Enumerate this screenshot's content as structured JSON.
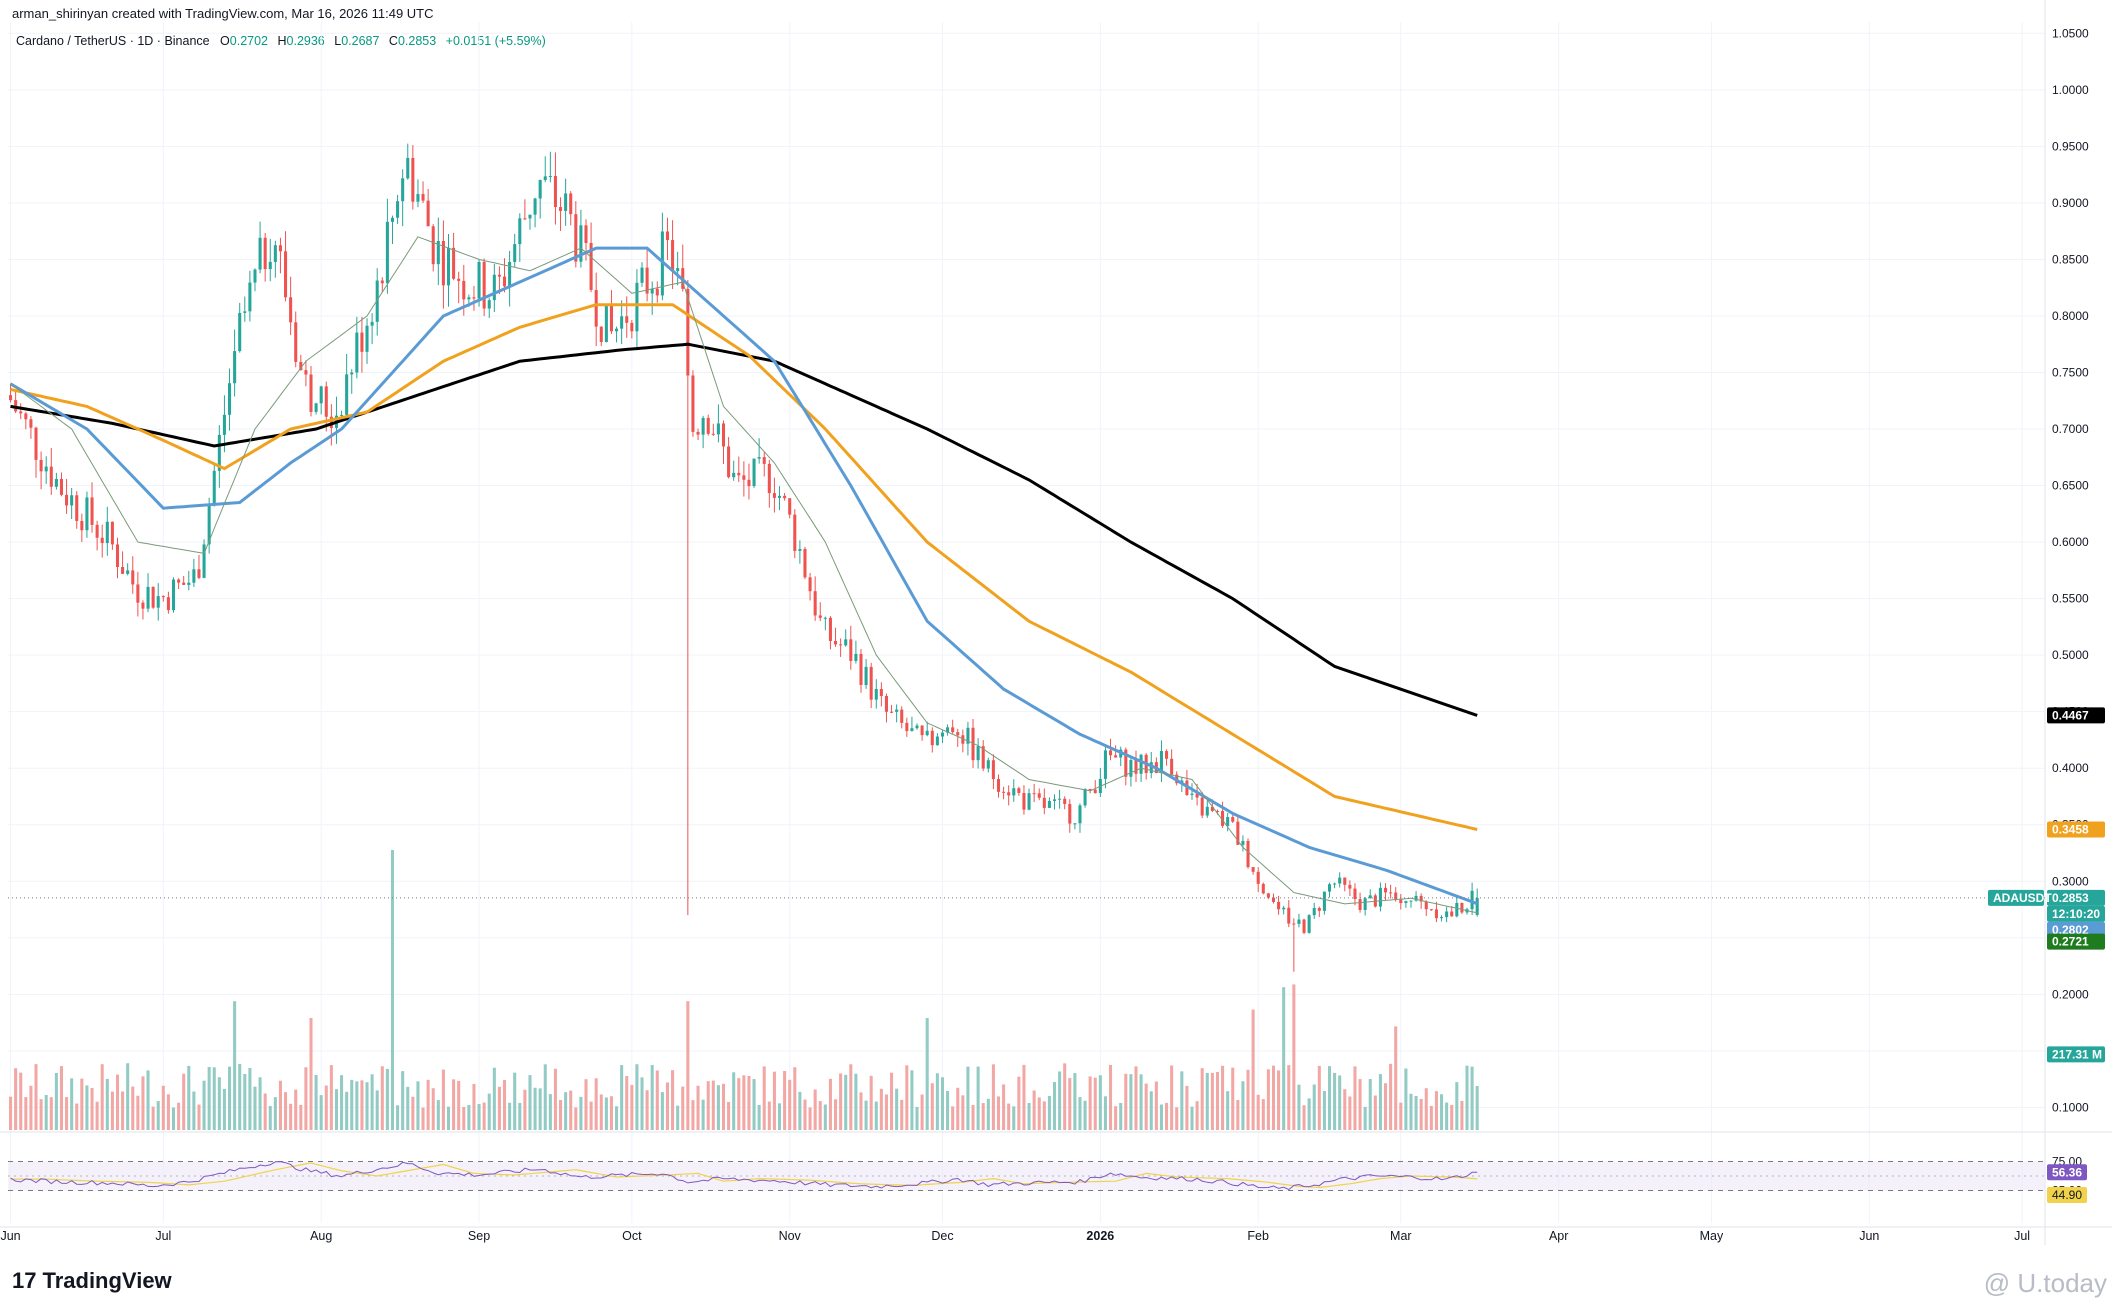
{
  "header": {
    "created_by": "arman_shirinyan created with TradingView.com, Mar 16, 2026 11:49 UTC"
  },
  "symbol": {
    "name": "Cardano / TetherUS · 1D · Binance",
    "open_label": "O",
    "open": "0.2702",
    "high_label": "H",
    "high": "0.2936",
    "low_label": "L",
    "low": "0.2687",
    "close_label": "C",
    "close": "0.2853",
    "change": "+0.0151 (+5.59%)"
  },
  "brand": {
    "name": "TradingView",
    "logo_text": "17"
  },
  "watermark": {
    "text": "@ U.today"
  },
  "colors": {
    "up": "#26a69a",
    "down": "#ef5350",
    "sma200": "#000000",
    "sma100": "#f0a11e",
    "sma50": "#5b9bd5",
    "sma20": "#7a9a7a",
    "vol_up": "#92cbc4",
    "vol_down": "#f2a7a5",
    "rsi": "#7e57c2",
    "rsi_ma": "#f0d34a"
  },
  "chart_data": {
    "type": "candlestick",
    "title": "Cardano / TetherUS · 1D · Binance",
    "ylim": [
      0.08,
      1.06
    ],
    "y_ticks": [
      1.05,
      1.0,
      0.95,
      0.9,
      0.85,
      0.8,
      0.75,
      0.7,
      0.65,
      0.6,
      0.55,
      0.5,
      0.45,
      0.4,
      0.35,
      0.3,
      0.25,
      0.2,
      0.15,
      0.1
    ],
    "x_labels": [
      "Jun",
      "Jul",
      "Aug",
      "Sep",
      "Oct",
      "Nov",
      "Dec",
      "2026",
      "Feb",
      "Mar",
      "Apr",
      "May",
      "Jun",
      "Jul"
    ],
    "x_label_days": [
      0,
      30,
      61,
      92,
      122,
      153,
      183,
      214,
      245,
      273,
      304,
      334,
      365,
      395
    ],
    "last_day": 288,
    "total_days": 400,
    "price_path": [
      [
        0,
        0.73
      ],
      [
        10,
        0.65
      ],
      [
        20,
        0.6
      ],
      [
        25,
        0.56
      ],
      [
        30,
        0.55
      ],
      [
        37,
        0.57
      ],
      [
        45,
        0.78
      ],
      [
        52,
        0.88
      ],
      [
        58,
        0.74
      ],
      [
        64,
        0.71
      ],
      [
        72,
        0.82
      ],
      [
        78,
        0.94
      ],
      [
        84,
        0.86
      ],
      [
        90,
        0.83
      ],
      [
        96,
        0.82
      ],
      [
        104,
        0.92
      ],
      [
        110,
        0.89
      ],
      [
        118,
        0.78
      ],
      [
        124,
        0.82
      ],
      [
        130,
        0.86
      ],
      [
        133,
        0.8
      ],
      [
        134,
        0.7
      ],
      [
        137,
        0.72
      ],
      [
        143,
        0.65
      ],
      [
        150,
        0.66
      ],
      [
        155,
        0.6
      ],
      [
        160,
        0.52
      ],
      [
        166,
        0.5
      ],
      [
        172,
        0.45
      ],
      [
        180,
        0.42
      ],
      [
        186,
        0.44
      ],
      [
        192,
        0.4
      ],
      [
        200,
        0.37
      ],
      [
        210,
        0.36
      ],
      [
        216,
        0.41
      ],
      [
        222,
        0.4
      ],
      [
        228,
        0.41
      ],
      [
        232,
        0.37
      ],
      [
        240,
        0.35
      ],
      [
        246,
        0.3
      ],
      [
        250,
        0.27
      ],
      [
        255,
        0.26
      ],
      [
        260,
        0.3
      ],
      [
        266,
        0.28
      ],
      [
        272,
        0.29
      ],
      [
        278,
        0.28
      ],
      [
        283,
        0.27
      ],
      [
        288,
        0.2853
      ]
    ],
    "moving_averages": [
      {
        "name": "SMA 200",
        "color": "#000000",
        "last": 0.4467,
        "points": [
          [
            0,
            0.72
          ],
          [
            20,
            0.705
          ],
          [
            40,
            0.685
          ],
          [
            60,
            0.7
          ],
          [
            80,
            0.73
          ],
          [
            100,
            0.76
          ],
          [
            120,
            0.77
          ],
          [
            133,
            0.775
          ],
          [
            150,
            0.76
          ],
          [
            160,
            0.74
          ],
          [
            180,
            0.7
          ],
          [
            200,
            0.655
          ],
          [
            220,
            0.6
          ],
          [
            240,
            0.55
          ],
          [
            260,
            0.49
          ],
          [
            288,
            0.4467
          ]
        ]
      },
      {
        "name": "SMA 100",
        "color": "#f0a11e",
        "last": 0.3458,
        "points": [
          [
            0,
            0.735
          ],
          [
            15,
            0.72
          ],
          [
            30,
            0.69
          ],
          [
            42,
            0.665
          ],
          [
            55,
            0.7
          ],
          [
            70,
            0.715
          ],
          [
            85,
            0.76
          ],
          [
            100,
            0.79
          ],
          [
            115,
            0.81
          ],
          [
            130,
            0.81
          ],
          [
            145,
            0.765
          ],
          [
            160,
            0.7
          ],
          [
            180,
            0.6
          ],
          [
            200,
            0.53
          ],
          [
            220,
            0.485
          ],
          [
            240,
            0.43
          ],
          [
            260,
            0.375
          ],
          [
            288,
            0.3458
          ]
        ]
      },
      {
        "name": "SMA 50",
        "color": "#5b9bd5",
        "last": 0.2802,
        "points": [
          [
            0,
            0.74
          ],
          [
            15,
            0.7
          ],
          [
            30,
            0.63
          ],
          [
            45,
            0.635
          ],
          [
            55,
            0.67
          ],
          [
            65,
            0.7
          ],
          [
            75,
            0.75
          ],
          [
            85,
            0.8
          ],
          [
            100,
            0.83
          ],
          [
            115,
            0.86
          ],
          [
            125,
            0.86
          ],
          [
            135,
            0.82
          ],
          [
            150,
            0.76
          ],
          [
            165,
            0.65
          ],
          [
            180,
            0.53
          ],
          [
            195,
            0.47
          ],
          [
            210,
            0.43
          ],
          [
            225,
            0.4
          ],
          [
            240,
            0.36
          ],
          [
            255,
            0.33
          ],
          [
            270,
            0.31
          ],
          [
            288,
            0.2802
          ]
        ]
      },
      {
        "name": "SMA 20",
        "color": "#7a9a7a",
        "last": 0.2721,
        "points": [
          [
            0,
            0.74
          ],
          [
            12,
            0.7
          ],
          [
            25,
            0.6
          ],
          [
            38,
            0.59
          ],
          [
            48,
            0.7
          ],
          [
            58,
            0.76
          ],
          [
            70,
            0.8
          ],
          [
            80,
            0.87
          ],
          [
            92,
            0.85
          ],
          [
            102,
            0.84
          ],
          [
            112,
            0.86
          ],
          [
            122,
            0.82
          ],
          [
            132,
            0.83
          ],
          [
            140,
            0.72
          ],
          [
            150,
            0.67
          ],
          [
            160,
            0.6
          ],
          [
            170,
            0.5
          ],
          [
            180,
            0.44
          ],
          [
            190,
            0.42
          ],
          [
            200,
            0.39
          ],
          [
            212,
            0.38
          ],
          [
            222,
            0.4
          ],
          [
            232,
            0.39
          ],
          [
            242,
            0.33
          ],
          [
            252,
            0.29
          ],
          [
            262,
            0.28
          ],
          [
            275,
            0.285
          ],
          [
            288,
            0.2721
          ]
        ]
      }
    ],
    "price_tags": [
      {
        "label": "0.4467",
        "value": 0.4467,
        "color": "#000000"
      },
      {
        "label": "0.3458",
        "value": 0.3458,
        "color": "#f0a11e"
      },
      {
        "label": "0.2853",
        "value": 0.2853,
        "color": "#26a69a"
      },
      {
        "label": "12:10:20",
        "value": 0.2853,
        "color": "#26a69a",
        "countdown": true
      },
      {
        "label": "0.2802",
        "value": 0.2802,
        "color": "#5b9bd5"
      },
      {
        "label": "0.2721",
        "value": 0.2721,
        "color": "#1e7b1e"
      }
    ],
    "symbol_tag": "ADAUSDT",
    "volume": {
      "last_label": "217.31 M",
      "spikes": [
        [
          75,
          1.0
        ],
        [
          133,
          0.46
        ],
        [
          250,
          0.51
        ],
        [
          252,
          0.52
        ],
        [
          244,
          0.43
        ],
        [
          44,
          0.46
        ],
        [
          59,
          0.4
        ],
        [
          180,
          0.4
        ],
        [
          272,
          0.37
        ]
      ]
    },
    "rsi": {
      "upper": 75.0,
      "lower": 25.0,
      "upper_label": "75.00",
      "lower_label": "25.00",
      "value": 56.36,
      "value_label": "56.36",
      "ma": 44.9,
      "ma_label": "44.90",
      "path": [
        [
          0,
          44
        ],
        [
          10,
          40
        ],
        [
          20,
          38
        ],
        [
          28,
          33
        ],
        [
          35,
          40
        ],
        [
          45,
          62
        ],
        [
          52,
          75
        ],
        [
          58,
          60
        ],
        [
          65,
          50
        ],
        [
          72,
          62
        ],
        [
          78,
          72
        ],
        [
          84,
          55
        ],
        [
          92,
          52
        ],
        [
          104,
          62
        ],
        [
          112,
          48
        ],
        [
          122,
          52
        ],
        [
          128,
          55
        ],
        [
          133,
          40
        ],
        [
          140,
          45
        ],
        [
          150,
          42
        ],
        [
          160,
          35
        ],
        [
          170,
          32
        ],
        [
          180,
          38
        ],
        [
          186,
          45
        ],
        [
          192,
          35
        ],
        [
          200,
          38
        ],
        [
          210,
          40
        ],
        [
          216,
          55
        ],
        [
          222,
          48
        ],
        [
          232,
          45
        ],
        [
          240,
          38
        ],
        [
          246,
          30
        ],
        [
          250,
          28
        ],
        [
          256,
          35
        ],
        [
          262,
          45
        ],
        [
          268,
          50
        ],
        [
          276,
          48
        ],
        [
          282,
          44
        ],
        [
          288,
          56.36
        ]
      ]
    }
  }
}
